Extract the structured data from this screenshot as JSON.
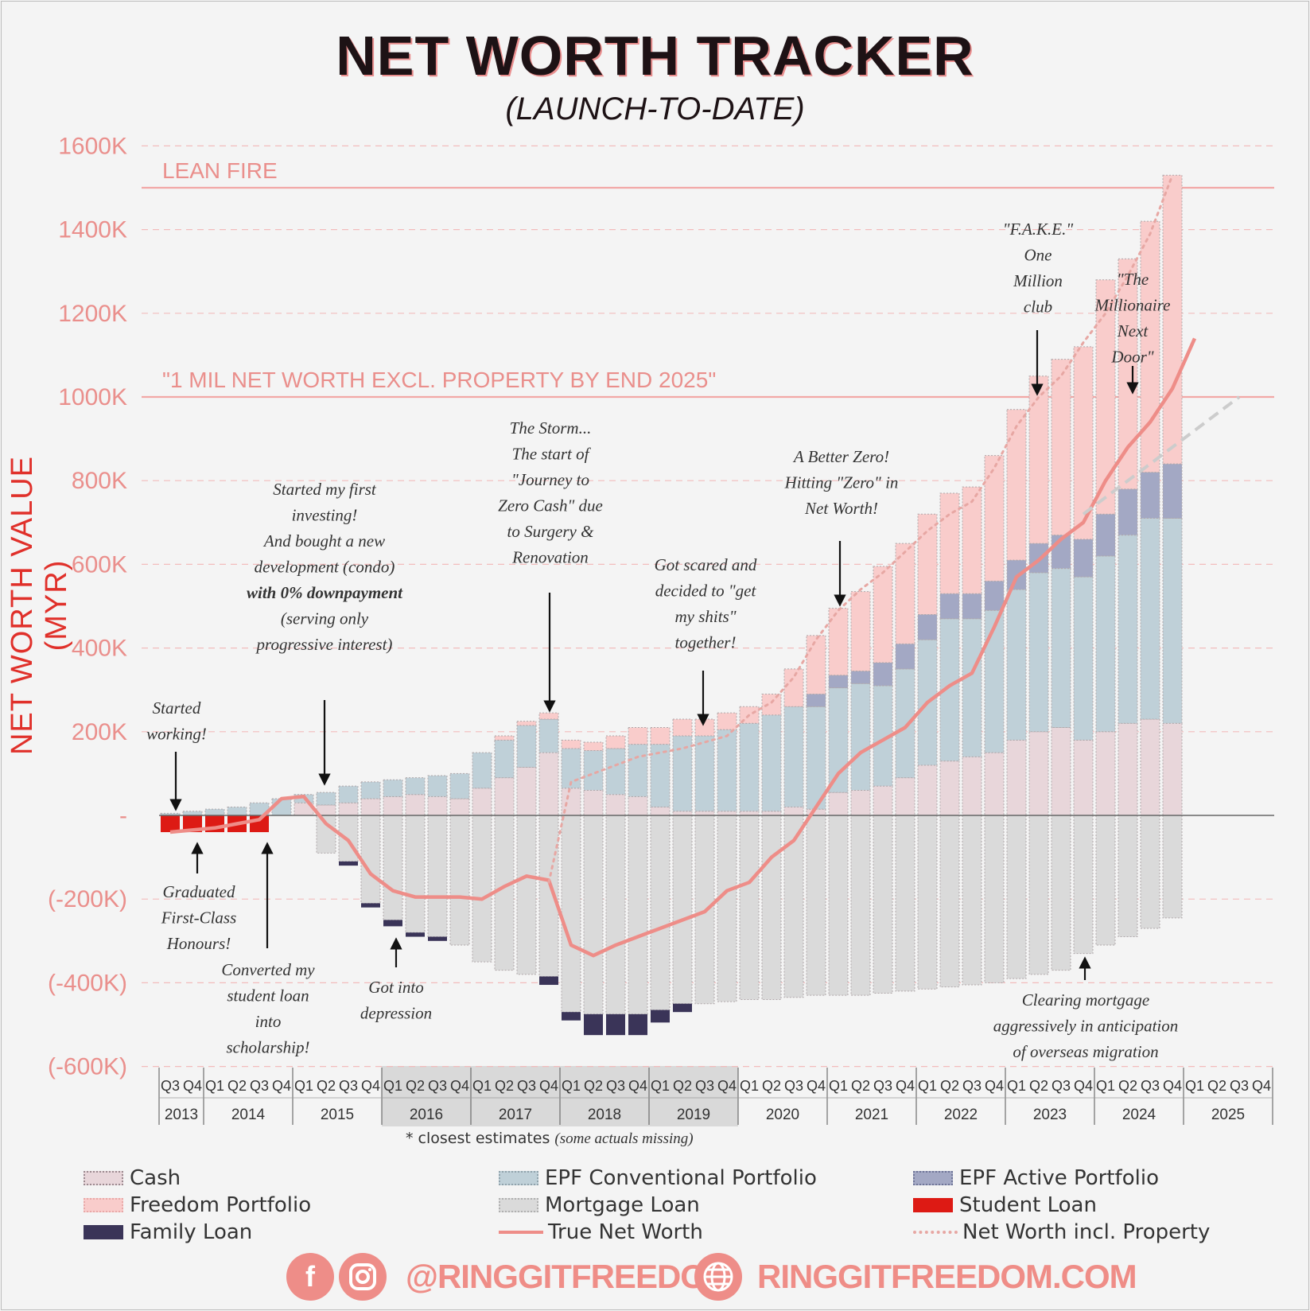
{
  "chart_data": {
    "type": "bar",
    "title": "NET WORTH TRACKER",
    "subtitle": "(LAUNCH-TO-DATE)",
    "ylabel": "NET WORTH VALUE (MYR)",
    "ylim": [
      -600,
      1600
    ],
    "yticks": [
      {
        "v": 1600,
        "label": "1600K"
      },
      {
        "v": 1400,
        "label": "1400K"
      },
      {
        "v": 1200,
        "label": "1200K"
      },
      {
        "v": 1000,
        "label": "1000K"
      },
      {
        "v": 800,
        "label": "800K"
      },
      {
        "v": 600,
        "label": "600K"
      },
      {
        "v": 400,
        "label": "400K"
      },
      {
        "v": 200,
        "label": "200K"
      },
      {
        "v": 0,
        "label": "-"
      },
      {
        "v": -200,
        "label": "(-200K)"
      },
      {
        "v": -400,
        "label": "(-400K)"
      },
      {
        "v": -600,
        "label": "(-600K)"
      }
    ],
    "reference_lines": [
      {
        "value": 1500,
        "label": "LEAN FIRE"
      },
      {
        "value": 1000,
        "label": "\"1 MIL NET WORTH EXCL. PROPERTY BY END 2025\""
      }
    ],
    "quarters": [
      "Q3",
      "Q4",
      "Q1",
      "Q2",
      "Q3",
      "Q4",
      "Q1",
      "Q2",
      "Q3",
      "Q4",
      "Q1",
      "Q2",
      "Q3",
      "Q4",
      "Q1",
      "Q2",
      "Q3",
      "Q4",
      "Q1",
      "Q2",
      "Q3",
      "Q4",
      "Q1",
      "Q2",
      "Q3",
      "Q4",
      "Q1",
      "Q2",
      "Q3",
      "Q4",
      "Q1",
      "Q2",
      "Q3",
      "Q4",
      "Q1",
      "Q2",
      "Q3",
      "Q4",
      "Q1",
      "Q2",
      "Q3",
      "Q4",
      "Q1",
      "Q2",
      "Q3",
      "Q4",
      "Q1",
      "Q2",
      "Q3",
      "Q4"
    ],
    "years": [
      {
        "label": "2013",
        "start": 0,
        "count": 2,
        "estimate": false
      },
      {
        "label": "2014",
        "start": 2,
        "count": 4,
        "estimate": false
      },
      {
        "label": "2015",
        "start": 6,
        "count": 4,
        "estimate": false
      },
      {
        "label": "2016",
        "start": 10,
        "count": 4,
        "estimate": true
      },
      {
        "label": "2017",
        "start": 14,
        "count": 4,
        "estimate": true
      },
      {
        "label": "2018",
        "start": 18,
        "count": 4,
        "estimate": true
      },
      {
        "label": "2019",
        "start": 22,
        "count": 4,
        "estimate": true
      },
      {
        "label": "2020",
        "start": 26,
        "count": 4,
        "estimate": false
      },
      {
        "label": "2021",
        "start": 30,
        "count": 4,
        "estimate": false
      },
      {
        "label": "2022",
        "start": 34,
        "count": 4,
        "estimate": false
      },
      {
        "label": "2023",
        "start": 38,
        "count": 4,
        "estimate": false
      },
      {
        "label": "2024",
        "start": 42,
        "count": 4,
        "estimate": false
      },
      {
        "label": "2025",
        "start": 46,
        "count": 4,
        "estimate": false
      }
    ],
    "legend": [
      "Cash",
      "EPF Conventional Portfolio",
      "EPF Active Portfolio",
      "Freedom Portfolio",
      "Mortgage Loan",
      "Student Loan",
      "Family Loan",
      "True Net Worth",
      "Net Worth incl. Property"
    ],
    "series": [
      {
        "name": "Cash",
        "color": "#e8d6da",
        "stack": "pos",
        "values": [
          0,
          0,
          0,
          0,
          0,
          0,
          30,
          25,
          30,
          40,
          45,
          50,
          45,
          40,
          65,
          90,
          115,
          150,
          65,
          60,
          50,
          45,
          20,
          10,
          10,
          10,
          10,
          10,
          20,
          15,
          55,
          60,
          70,
          90,
          120,
          130,
          140,
          150,
          180,
          200,
          210,
          180,
          200,
          220,
          230,
          220,
          null,
          null,
          null,
          null
        ]
      },
      {
        "name": "EPF Conventional Portfolio",
        "color": "#bfd0d8",
        "stack": "pos",
        "values": [
          5,
          10,
          15,
          20,
          30,
          40,
          20,
          30,
          40,
          40,
          40,
          40,
          50,
          60,
          85,
          90,
          100,
          80,
          95,
          95,
          110,
          125,
          150,
          180,
          180,
          195,
          210,
          230,
          240,
          245,
          250,
          255,
          240,
          260,
          300,
          340,
          330,
          340,
          360,
          380,
          380,
          390,
          420,
          450,
          480,
          490,
          null,
          null,
          null,
          null
        ]
      },
      {
        "name": "EPF Active Portfolio",
        "color": "#a3a8c4",
        "stack": "pos",
        "values": [
          0,
          0,
          0,
          0,
          0,
          0,
          0,
          0,
          0,
          0,
          0,
          0,
          0,
          0,
          0,
          0,
          0,
          0,
          0,
          0,
          0,
          0,
          0,
          0,
          0,
          0,
          0,
          0,
          0,
          30,
          30,
          30,
          55,
          60,
          60,
          60,
          60,
          70,
          70,
          70,
          80,
          90,
          100,
          110,
          110,
          130,
          null,
          null,
          null,
          null
        ]
      },
      {
        "name": "Freedom Portfolio",
        "color": "#f9cccb",
        "stack": "pos",
        "values": [
          0,
          0,
          0,
          0,
          0,
          0,
          0,
          0,
          0,
          0,
          0,
          0,
          0,
          0,
          0,
          10,
          10,
          15,
          20,
          20,
          30,
          40,
          40,
          40,
          40,
          40,
          40,
          50,
          90,
          140,
          160,
          190,
          230,
          240,
          240,
          240,
          255,
          300,
          360,
          400,
          420,
          460,
          560,
          550,
          600,
          690,
          null,
          null,
          null,
          null
        ]
      },
      {
        "name": "Mortgage Loan",
        "color": "#dadada",
        "stack": "neg",
        "values": [
          0,
          0,
          0,
          0,
          0,
          0,
          0,
          -90,
          -110,
          -210,
          -250,
          -280,
          -290,
          -310,
          -350,
          -370,
          -380,
          -385,
          -470,
          -475,
          -475,
          -475,
          -465,
          -450,
          -450,
          -445,
          -440,
          -440,
          -435,
          -430,
          -430,
          -430,
          -425,
          -420,
          -415,
          -410,
          -405,
          -400,
          -390,
          -380,
          -370,
          -330,
          -310,
          -290,
          -270,
          -245,
          null,
          null,
          null,
          null
        ]
      },
      {
        "name": "Student Loan",
        "color": "#dd1a14",
        "stack": "neg",
        "values": [
          -40,
          -40,
          -40,
          -40,
          -40,
          0,
          0,
          0,
          0,
          0,
          0,
          0,
          0,
          0,
          0,
          0,
          0,
          0,
          0,
          0,
          0,
          0,
          0,
          0,
          0,
          0,
          0,
          0,
          0,
          0,
          0,
          0,
          0,
          0,
          0,
          0,
          0,
          0,
          0,
          0,
          0,
          0,
          0,
          0,
          0,
          0,
          null,
          null,
          null,
          null
        ]
      },
      {
        "name": "Family Loan",
        "color": "#3a3458",
        "stack": "neg",
        "values": [
          0,
          0,
          0,
          0,
          0,
          0,
          0,
          0,
          -10,
          -10,
          -15,
          -10,
          -10,
          0,
          0,
          0,
          0,
          -20,
          -20,
          -50,
          -50,
          -50,
          -30,
          -20,
          0,
          0,
          0,
          0,
          0,
          0,
          0,
          0,
          0,
          0,
          0,
          0,
          0,
          0,
          0,
          0,
          0,
          0,
          0,
          0,
          0,
          0,
          null,
          null,
          null,
          null
        ]
      }
    ],
    "lines": [
      {
        "name": "True Net Worth",
        "color": "#ee8d88",
        "values": [
          -40,
          -35,
          -30,
          -20,
          -10,
          40,
          45,
          -20,
          -60,
          -140,
          -180,
          -195,
          -195,
          -195,
          -200,
          -170,
          -145,
          -155,
          -310,
          -335,
          -310,
          -290,
          -270,
          -250,
          -230,
          -180,
          -160,
          -100,
          -60,
          20,
          100,
          150,
          180,
          210,
          270,
          310,
          340,
          450,
          570,
          610,
          660,
          700,
          800,
          880,
          940,
          1020,
          1140,
          null,
          null,
          null
        ]
      },
      {
        "name": "Net Worth incl. Property",
        "color": "#e7a7a3",
        "values": [
          null,
          null,
          null,
          null,
          null,
          null,
          null,
          null,
          null,
          null,
          null,
          null,
          null,
          null,
          null,
          null,
          null,
          -160,
          80,
          100,
          120,
          140,
          150,
          160,
          175,
          190,
          240,
          270,
          330,
          420,
          490,
          540,
          580,
          630,
          680,
          720,
          750,
          830,
          930,
          1000,
          1050,
          1130,
          1200,
          1290,
          1390,
          1530,
          null,
          null,
          null,
          null
        ]
      },
      {
        "name": "trend",
        "color": "#cccccc",
        "values": [
          null,
          null,
          null,
          null,
          null,
          null,
          null,
          null,
          null,
          null,
          null,
          null,
          null,
          null,
          null,
          null,
          null,
          null,
          null,
          null,
          null,
          null,
          null,
          null,
          null,
          null,
          null,
          null,
          null,
          null,
          null,
          null,
          null,
          null,
          null,
          null,
          null,
          null,
          null,
          null,
          null,
          720,
          760,
          800,
          840,
          880,
          920,
          960,
          1000,
          null
        ]
      }
    ],
    "annotations": [
      {
        "lines": [
          "Started",
          "working!"
        ],
        "bold": []
      },
      {
        "lines": [
          "Graduated",
          "First-Class",
          "Honours!"
        ],
        "bold": []
      },
      {
        "lines": [
          "Converted my",
          "student loan",
          "into",
          "scholarship!"
        ],
        "bold": []
      },
      {
        "lines": [
          "Started my first",
          "investing!",
          "",
          "And bought a new",
          "development (condo)",
          "with 0% downpayment",
          "(serving only",
          "progressive interest)"
        ],
        "bold": [
          5
        ]
      },
      {
        "lines": [
          "Got into",
          "depression"
        ],
        "bold": []
      },
      {
        "lines": [
          "The Storm...",
          "",
          "The start of",
          "\"Journey to",
          "Zero Cash\" due",
          "to Surgery &",
          "Renovation"
        ],
        "bold": []
      },
      {
        "lines": [
          "Got scared and",
          "decided to \"get",
          "my shits\"",
          "together!"
        ],
        "bold": []
      },
      {
        "lines": [
          "A Better Zero!",
          "",
          "Hitting \"Zero\" in",
          "Net Worth!"
        ],
        "bold": []
      },
      {
        "lines": [
          "\"F.A.K.E.\"",
          "One",
          "Million",
          "club"
        ],
        "bold": []
      },
      {
        "lines": [
          "\"The",
          "Millionaire",
          "Next",
          "Door\""
        ],
        "bold": []
      },
      {
        "lines": [
          "Clearing mortgage",
          "aggressively in anticipation",
          "of overseas migration"
        ],
        "bold": []
      }
    ],
    "footnote": {
      "text": "* closest estimates",
      "note": "(some actuals missing)"
    }
  },
  "footer": {
    "handle": "@RINGGITFREEDOM",
    "website": "RINGGITFREEDOM.COM"
  }
}
